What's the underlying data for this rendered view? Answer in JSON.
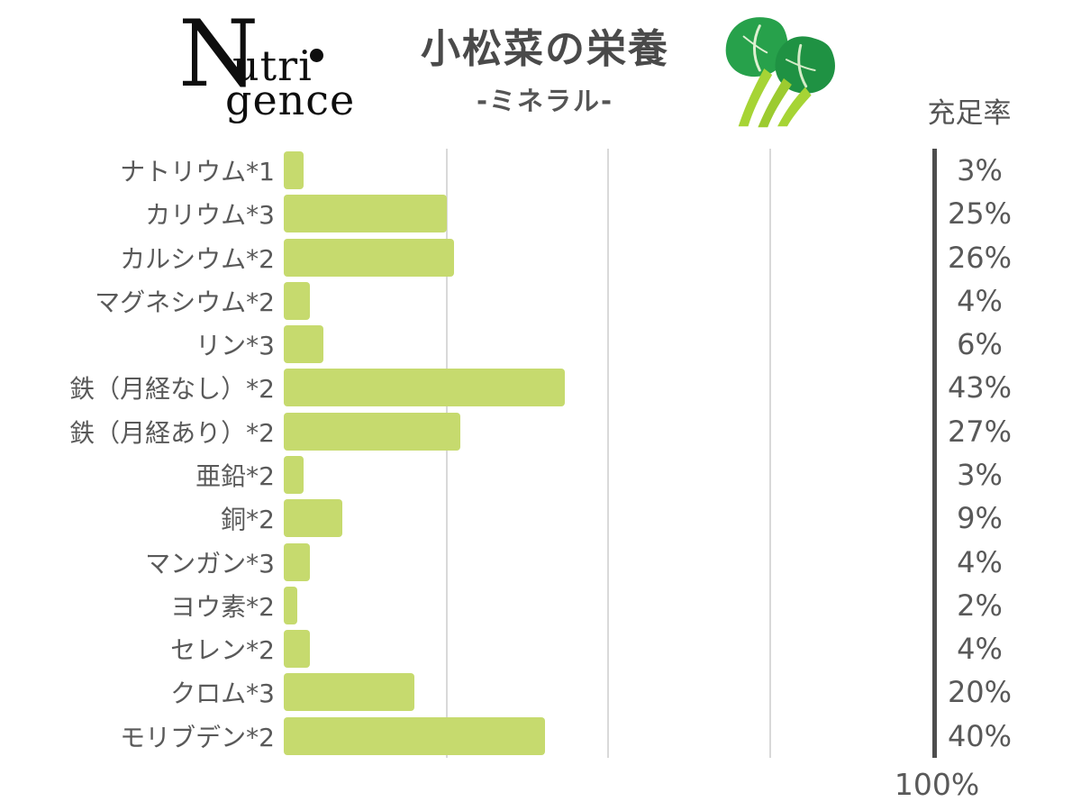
{
  "brand": {
    "name": "Nutrigence",
    "initial": "N",
    "line1": "utri",
    "line2": "gence"
  },
  "header": {
    "title": "小松菜の栄養",
    "subtitle": "-ミネラル-",
    "value_axis_header": "充足率",
    "axis_end_label": "100%"
  },
  "colors": {
    "bar": "#c6da6e",
    "gridline": "#d9d9d9",
    "axis_line": "#4d4d4d",
    "text": "#595959",
    "title_text": "#4a4a4a",
    "logo_text": "#0e0e0e",
    "leaf_green": "#27a14b",
    "leaf_green_dark": "#1f9243",
    "stem_green": "#a6d435"
  },
  "chart_data": {
    "type": "bar",
    "orientation": "horizontal",
    "title": "小松菜の栄養",
    "subtitle": "-ミネラル-",
    "value_axis_header": "充足率",
    "unit": "%",
    "xlim": [
      0,
      100
    ],
    "gridlines_percent": [
      25,
      50,
      75
    ],
    "axis_line_at": 100,
    "legend": "none",
    "categories": [
      "ナトリウム*1",
      "カリウム*3",
      "カルシウム*2",
      "マグネシウム*2",
      "リン*3",
      "鉄（月経なし）*2",
      "鉄（月経あり）*2",
      "亜鉛*2",
      "銅*2",
      "マンガン*3",
      "ヨウ素*2",
      "セレン*2",
      "クロム*3",
      "モリブデン*2"
    ],
    "values": [
      3,
      25,
      26,
      4,
      6,
      43,
      27,
      3,
      9,
      4,
      2,
      4,
      20,
      40
    ],
    "value_labels": [
      "3%",
      "25%",
      "26%",
      "4%",
      "6%",
      "43%",
      "27%",
      "3%",
      "9%",
      "4%",
      "2%",
      "4%",
      "20%",
      "40%"
    ]
  }
}
